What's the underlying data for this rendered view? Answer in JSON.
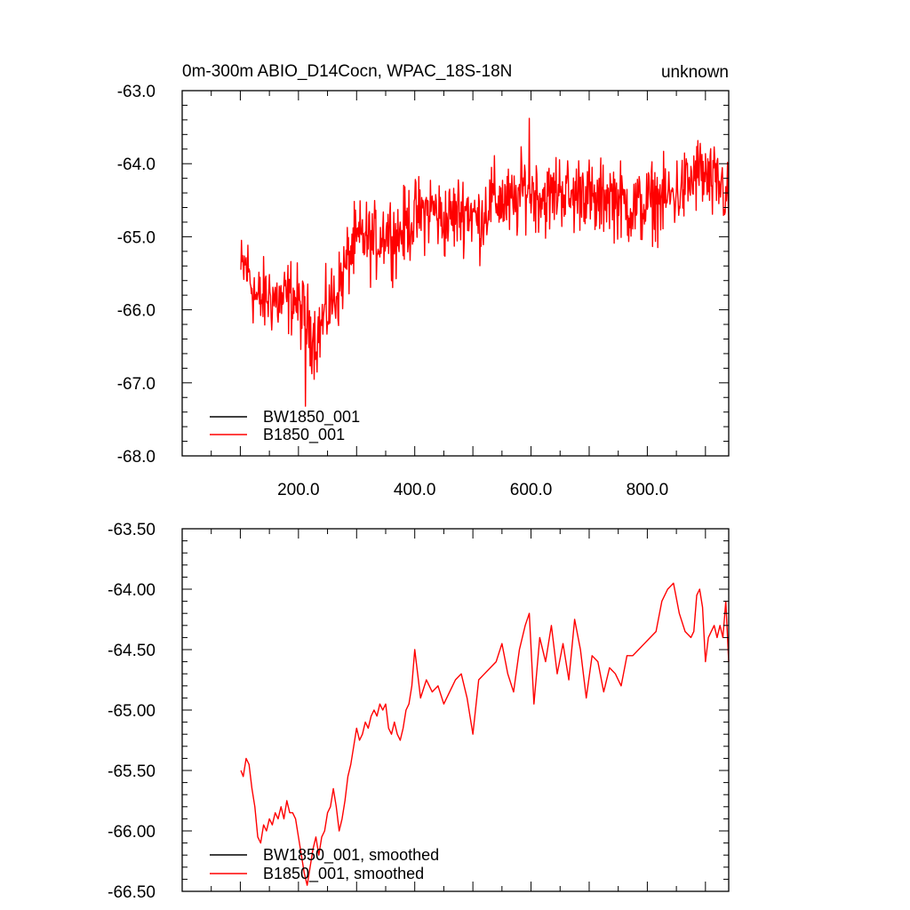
{
  "figure": {
    "title_left": "0m-300m ABIO_D14Cocn, WPAC_18S-18N",
    "title_right": "unknown"
  },
  "chart_data": [
    {
      "type": "line",
      "panel": "top",
      "title": "0m-300m ABIO_D14Cocn, WPAC_18S-18N",
      "right_label": "unknown",
      "xlabel": "",
      "ylabel": "",
      "xlim": [
        0,
        940
      ],
      "ylim": [
        -68.0,
        -63.0
      ],
      "x_ticks": [
        200,
        400,
        600,
        800
      ],
      "x_tick_labels": [
        "200.0",
        "400.0",
        "600.0",
        "800.0"
      ],
      "y_ticks": [
        -68,
        -67,
        -66,
        -65,
        -64,
        -63
      ],
      "y_tick_labels": [
        "-68.0",
        "-67.0",
        "-66.0",
        "-65.0",
        "-64.0",
        "-63.0"
      ],
      "grid": false,
      "legend_position": "bottom-left",
      "legend": [
        {
          "name": "BW1850_001",
          "color": "#000000"
        },
        {
          "name": "B1850_001",
          "color": "#ff0000"
        }
      ],
      "series": [
        {
          "name": "B1850_001",
          "color": "#ff0000",
          "x_start": 101,
          "x_end": 940,
          "anchor_x": [
            101,
            110,
            130,
            150,
            170,
            190,
            210,
            230,
            250,
            270,
            290,
            310,
            330,
            350,
            370,
            390,
            410,
            430,
            450,
            470,
            490,
            510,
            530,
            550,
            570,
            590,
            610,
            630,
            650,
            670,
            690,
            710,
            730,
            750,
            770,
            790,
            810,
            830,
            850,
            870,
            890,
            910,
            930,
            940
          ],
          "anchor_y": [
            -65.5,
            -65.4,
            -65.9,
            -65.8,
            -65.9,
            -65.8,
            -66.1,
            -66.4,
            -66.0,
            -65.7,
            -65.2,
            -65.0,
            -65.1,
            -64.9,
            -65.0,
            -64.8,
            -64.7,
            -64.6,
            -64.8,
            -64.7,
            -64.6,
            -64.8,
            -64.5,
            -64.5,
            -64.6,
            -64.3,
            -64.4,
            -64.5,
            -64.3,
            -64.5,
            -64.3,
            -64.6,
            -64.4,
            -64.5,
            -64.6,
            -64.6,
            -64.5,
            -64.5,
            -64.4,
            -64.3,
            -64.1,
            -64.3,
            -64.3,
            -64.6
          ],
          "noise_amplitude": 0.45,
          "notable_points": {
            "max": [
              597,
              -63.38
            ],
            "min": [
              212,
              -67.32
            ]
          }
        }
      ]
    },
    {
      "type": "line",
      "panel": "bottom",
      "title": "",
      "xlabel": "",
      "ylabel": "",
      "xlim": [
        0,
        940
      ],
      "ylim": [
        -66.5,
        -63.5
      ],
      "x_ticks": [
        200,
        400,
        600,
        800
      ],
      "x_tick_labels": [],
      "y_ticks": [
        -66.5,
        -66.0,
        -65.5,
        -65.0,
        -64.5,
        -64.0,
        -63.5
      ],
      "y_tick_labels": [
        "-66.50",
        "-66.00",
        "-65.50",
        "-65.00",
        "-64.50",
        "-64.00",
        "-63.50"
      ],
      "grid": false,
      "legend_position": "bottom-left",
      "legend": [
        {
          "name": "BW1850_001, smoothed",
          "color": "#000000"
        },
        {
          "name": "B1850_001, smoothed",
          "color": "#ff0000"
        }
      ],
      "series": [
        {
          "name": "B1850_001, smoothed",
          "color": "#ff0000",
          "x": [
            101,
            105,
            110,
            115,
            120,
            125,
            130,
            135,
            140,
            145,
            150,
            155,
            160,
            165,
            170,
            175,
            180,
            185,
            190,
            195,
            200,
            205,
            210,
            215,
            220,
            225,
            230,
            235,
            240,
            245,
            250,
            255,
            260,
            265,
            270,
            275,
            280,
            285,
            290,
            295,
            300,
            305,
            310,
            315,
            320,
            325,
            330,
            335,
            340,
            345,
            350,
            355,
            360,
            365,
            370,
            375,
            380,
            385,
            390,
            395,
            400,
            410,
            420,
            430,
            440,
            450,
            460,
            470,
            480,
            490,
            500,
            510,
            520,
            530,
            540,
            550,
            560,
            570,
            580,
            590,
            597,
            605,
            615,
            625,
            635,
            645,
            655,
            665,
            675,
            685,
            695,
            705,
            715,
            725,
            735,
            745,
            755,
            765,
            775,
            785,
            795,
            805,
            815,
            825,
            835,
            845,
            855,
            865,
            875,
            880,
            885,
            890,
            895,
            900,
            905,
            910,
            915,
            920,
            925,
            930,
            935,
            940
          ],
          "y": [
            -65.5,
            -65.55,
            -65.4,
            -65.45,
            -65.65,
            -65.8,
            -66.05,
            -66.1,
            -65.95,
            -66.0,
            -65.9,
            -65.95,
            -65.85,
            -65.9,
            -65.8,
            -65.9,
            -65.75,
            -65.85,
            -65.85,
            -65.9,
            -66.05,
            -66.2,
            -66.35,
            -66.45,
            -66.3,
            -66.15,
            -66.05,
            -66.2,
            -66.05,
            -66.0,
            -65.85,
            -65.8,
            -65.65,
            -65.8,
            -66.0,
            -65.9,
            -65.75,
            -65.55,
            -65.45,
            -65.3,
            -65.15,
            -65.25,
            -65.2,
            -65.1,
            -65.15,
            -65.05,
            -65.0,
            -65.05,
            -64.95,
            -65.0,
            -64.95,
            -65.15,
            -65.2,
            -65.1,
            -65.2,
            -65.25,
            -65.15,
            -65.0,
            -64.95,
            -64.8,
            -64.5,
            -64.9,
            -64.75,
            -64.85,
            -64.8,
            -64.95,
            -64.85,
            -64.75,
            -64.7,
            -64.9,
            -65.2,
            -64.75,
            -64.7,
            -64.65,
            -64.6,
            -64.45,
            -64.7,
            -64.85,
            -64.5,
            -64.3,
            -64.2,
            -64.95,
            -64.4,
            -64.6,
            -64.3,
            -64.7,
            -64.45,
            -64.75,
            -64.25,
            -64.5,
            -64.9,
            -64.55,
            -64.6,
            -64.85,
            -64.65,
            -64.7,
            -64.8,
            -64.55,
            -64.55,
            -64.5,
            -64.45,
            -64.4,
            -64.35,
            -64.1,
            -64.0,
            -63.95,
            -64.2,
            -64.35,
            -64.4,
            -64.35,
            -64.05,
            -64.0,
            -64.15,
            -64.6,
            -64.4,
            -64.35,
            -64.3,
            -64.4,
            -64.3,
            -64.4,
            -64.1,
            -64.6
          ]
        }
      ]
    }
  ]
}
